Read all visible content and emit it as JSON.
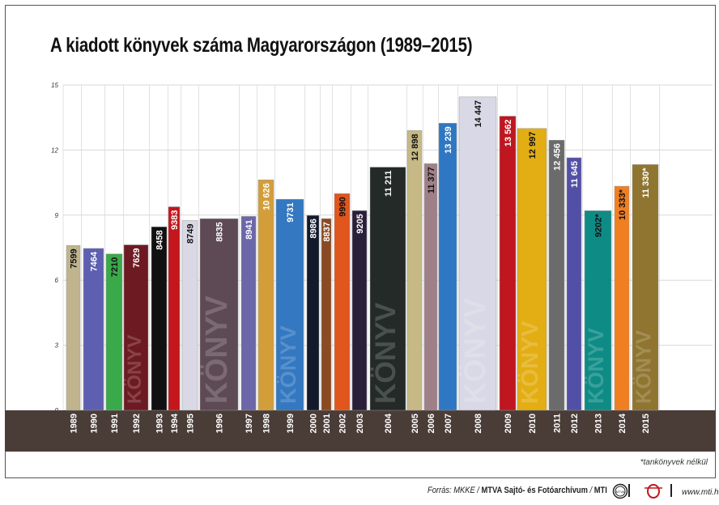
{
  "chart_data": {
    "type": "bar",
    "title": "A kiadott könyvek száma Magyarországon (1989–2015)",
    "xlabel": "",
    "ylabel": "",
    "ylim": [
      0,
      15
    ],
    "yticks": [
      "0",
      "3",
      "6",
      "9",
      "12",
      "15"
    ],
    "grid": true,
    "categories": [
      "1989",
      "1990",
      "1991",
      "1992",
      "1993",
      "1994",
      "1995",
      "1996",
      "1997",
      "1998",
      "1999",
      "2000",
      "2001",
      "2002",
      "2003",
      "2004",
      "2005",
      "2006",
      "2007",
      "2008",
      "2009",
      "2010",
      "2011",
      "2012",
      "2013",
      "2014",
      "2015"
    ],
    "values": [
      7599,
      7464,
      7210,
      7629,
      8458,
      9383,
      8749,
      8835,
      8941,
      10626,
      9731,
      8986,
      8837,
      9990,
      9205,
      11211,
      12898,
      11377,
      13239,
      14447,
      13562,
      12997,
      12456,
      11645,
      9202,
      10333,
      11330
    ],
    "labels": [
      "7599",
      "7464",
      "7210",
      "7629",
      "8458",
      "9383",
      "8749",
      "8835",
      "8941",
      "10 626",
      "9731",
      "8986",
      "8837",
      "9990",
      "9205",
      "11 211",
      "12 898",
      "11 377",
      "13 239",
      "14 447",
      "13 562",
      "12 997",
      "12 456",
      "11 645",
      "9202*",
      "10 333*",
      "11 330*"
    ],
    "colors": [
      "#bfb48e",
      "#5e5fb0",
      "#3aa94a",
      "#6e1a22",
      "#111111",
      "#c4161c",
      "#d9d8e4",
      "#5e4a55",
      "#6b67a8",
      "#d39e3a",
      "#3378c0",
      "#121a2b",
      "#8a4a22",
      "#e0561d",
      "#2a1f3a",
      "#232a27",
      "#c7b985",
      "#a08088",
      "#2f77c2",
      "#d8d8e6",
      "#c0161f",
      "#e3ae14",
      "#6b6b6b",
      "#5250a6",
      "#0f8b86",
      "#f07f22",
      "#8f7530"
    ],
    "label_colors": [
      "#111",
      "#fff",
      "#111",
      "#fff",
      "#fff",
      "#fff",
      "#111",
      "#fff",
      "#fff",
      "#fff",
      "#fff",
      "#fff",
      "#fff",
      "#111",
      "#fff",
      "#fff",
      "#111",
      "#111",
      "#fff",
      "#111",
      "#fff",
      "#111",
      "#fff",
      "#fff",
      "#111",
      "#111",
      "#fff"
    ]
  },
  "watermark": "KÖNYV",
  "footnote": "*tankönyvek nélkül",
  "source": {
    "prefix": "Forrás: MKKE / ",
    "bold": "MTVA Sajtó- és Fotóarchívum",
    "sep": " / ",
    "mti": "MTI",
    "url": "www.mti.hu",
    "logo1": "MTVA"
  }
}
